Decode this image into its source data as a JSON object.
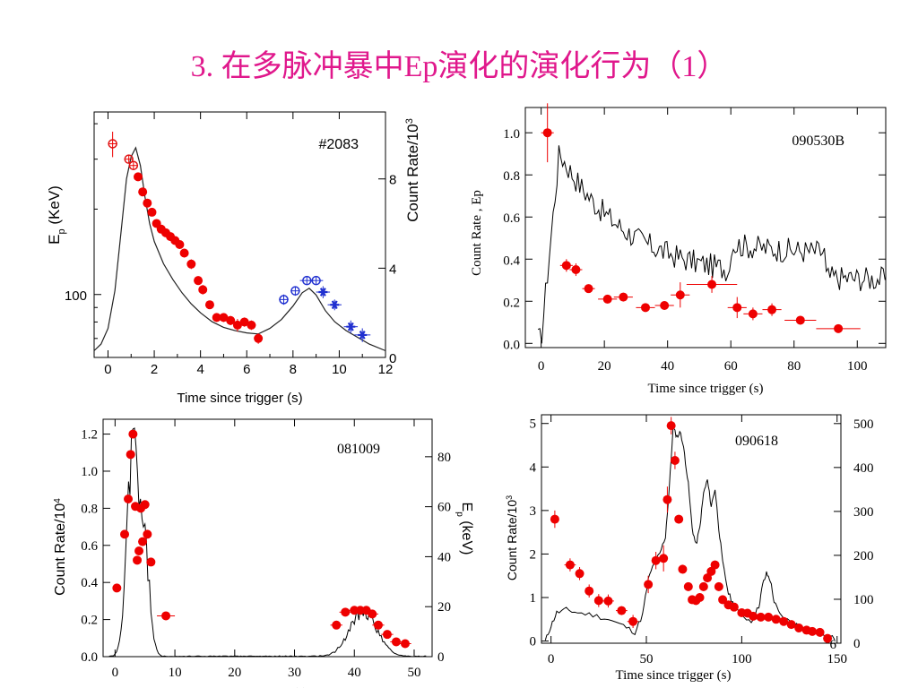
{
  "title": "3. 在多脉冲暴中Ep演化的演化行为（1）",
  "colors": {
    "title": "#e0188c",
    "filled_point": "#ee0000",
    "open_point": "#e01010",
    "blue_point": "#2030d0"
  },
  "chart_data": [
    {
      "id": "p1",
      "type": "scatter",
      "annotation": "#2083",
      "xlabel": "Time since trigger (s)",
      "ylabel": "E_p (KeV)",
      "ylabel_right": "Count Rate/10^3",
      "xlim": [
        -0.6,
        12
      ],
      "x_ticks": [
        0,
        2,
        4,
        6,
        8,
        10,
        12
      ],
      "y_log": true,
      "ylim": [
        60,
        440
      ],
      "y_ticks": [
        100
      ],
      "y2lim": [
        0,
        11
      ],
      "y2_ticks": [
        0,
        4,
        8
      ],
      "series": [
        {
          "marker": "open-red",
          "x": [
            0.2,
            0.9,
            1.1
          ],
          "y": [
            340,
            300,
            285
          ],
          "xerr": [
            0.2,
            0.15,
            0.15
          ],
          "yerr": [
            35,
            10,
            10
          ]
        },
        {
          "marker": "filled-red",
          "x": [
            1.3,
            1.5,
            1.7,
            1.9,
            2.1,
            2.3,
            2.5,
            2.7,
            2.9,
            3.1,
            3.3,
            3.6,
            3.9,
            4.1,
            4.4,
            4.7,
            5.0,
            5.3,
            5.6,
            5.9,
            6.2,
            6.5
          ],
          "y": [
            260,
            230,
            210,
            195,
            178,
            170,
            165,
            160,
            155,
            150,
            140,
            128,
            112,
            104,
            92,
            83,
            83,
            81,
            78,
            80,
            78,
            70
          ],
          "xerr": [
            0.1,
            0.1,
            0.1,
            0.1,
            0.1,
            0.1,
            0.1,
            0.1,
            0.1,
            0.1,
            0.1,
            0.1,
            0.1,
            0.1,
            0.1,
            0.1,
            0.1,
            0.1,
            0.15,
            0.15,
            0.2,
            0.15
          ],
          "yerr": [
            5,
            5,
            5,
            5,
            5,
            5,
            5,
            5,
            5,
            5,
            5,
            5,
            4,
            4,
            3,
            3,
            3,
            3,
            4,
            3,
            3,
            3
          ]
        },
        {
          "marker": "open-blue",
          "x": [
            7.6,
            8.1,
            8.6,
            9.0
          ],
          "y": [
            96,
            103,
            112,
            112
          ],
          "xerr": [
            0.2,
            0.2,
            0.3,
            0.3
          ],
          "yerr": [
            4,
            4,
            4,
            4
          ]
        },
        {
          "marker": "star-blue",
          "x": [
            9.3,
            9.8,
            10.5,
            11.0
          ],
          "y": [
            102,
            92,
            77,
            72
          ],
          "xerr": [
            0.3,
            0.3,
            0.3,
            0.35
          ],
          "yerr": [
            5,
            4,
            4,
            4
          ]
        }
      ],
      "light_curve_y2": {
        "t": [
          -0.6,
          -0.3,
          0.0,
          0.3,
          0.6,
          0.8,
          1.0,
          1.2,
          1.4,
          1.6,
          1.8,
          2.0,
          2.4,
          2.8,
          3.2,
          3.6,
          4.0,
          4.5,
          5.0,
          5.5,
          6.0,
          6.5,
          7.0,
          7.5,
          8.0,
          8.4,
          8.7,
          9.0,
          9.4,
          9.8,
          10.3,
          10.8,
          11.3,
          12.0
        ],
        "rate": [
          0.3,
          0.6,
          1.3,
          3.0,
          6.0,
          8.0,
          9.0,
          9.4,
          8.6,
          7.2,
          6.0,
          5.2,
          4.2,
          3.5,
          2.9,
          2.4,
          2.0,
          1.6,
          1.35,
          1.2,
          1.1,
          1.05,
          1.3,
          1.7,
          2.3,
          2.9,
          3.1,
          2.8,
          2.1,
          1.6,
          1.2,
          0.9,
          0.6,
          0.3
        ]
      }
    },
    {
      "id": "p2",
      "type": "scatter",
      "annotation": "090530B",
      "xlabel": "Time since trigger (s)",
      "ylabel": "Count Rate , Ep",
      "xlim": [
        -5,
        109
      ],
      "x_ticks": [
        0,
        20,
        40,
        60,
        80,
        100
      ],
      "ylim": [
        -0.02,
        1.12
      ],
      "y_ticks": [
        0.0,
        0.2,
        0.4,
        0.6,
        0.8,
        1.0
      ],
      "y_tick_labels": [
        "0.0",
        "0.2",
        "0.4",
        "0.6",
        "0.8",
        "1.0"
      ],
      "series": [
        {
          "marker": "filled-red",
          "x": [
            2,
            8,
            11,
            15,
            21,
            26,
            33,
            39,
            44,
            54,
            62,
            67,
            73,
            82,
            94
          ],
          "y": [
            1.0,
            0.37,
            0.35,
            0.26,
            0.21,
            0.22,
            0.17,
            0.18,
            0.23,
            0.28,
            0.17,
            0.14,
            0.16,
            0.11,
            0.07
          ],
          "xerr": [
            2,
            2,
            2,
            2,
            3,
            3,
            3,
            3,
            3,
            8,
            3,
            3,
            3,
            5,
            7
          ],
          "yerr": [
            0.14,
            0.03,
            0.03,
            0.02,
            0.02,
            0.02,
            0.02,
            0.02,
            0.06,
            0.04,
            0.05,
            0.03,
            0.03,
            0.02,
            0.02
          ]
        }
      ],
      "light_curve": {
        "t_start": -1,
        "t_end": 109,
        "rise_to": 6,
        "peak": 0.95,
        "base": 0.02
      }
    },
    {
      "id": "p3",
      "type": "scatter",
      "annotation": "081009",
      "xlabel": "Time since trigger (s)",
      "ylabel": "Count Rate/10^4",
      "ylabel_right": "E_p (keV)",
      "xlim": [
        -2,
        53
      ],
      "x_ticks": [
        0,
        10,
        20,
        30,
        40,
        50
      ],
      "ylim": [
        0,
        1.28
      ],
      "y_ticks": [
        0.0,
        0.2,
        0.4,
        0.6,
        0.8,
        1.0,
        1.2
      ],
      "y_tick_labels": [
        "0.0",
        "0.2",
        "0.4",
        "0.6",
        "0.8",
        "1.0",
        "1.2"
      ],
      "y2lim": [
        0,
        95
      ],
      "y2_ticks": [
        0,
        20,
        40,
        60,
        80
      ],
      "series": [
        {
          "marker": "filled-red",
          "x": [
            0.3,
            1.6,
            2.2,
            2.6,
            3.0,
            3.4,
            3.7,
            4.0,
            4.3,
            4.6,
            5.0,
            5.4,
            6.0,
            8.5
          ],
          "y": [
            0.37,
            0.66,
            0.85,
            1.09,
            1.2,
            0.81,
            0.52,
            0.57,
            0.8,
            0.62,
            0.82,
            0.66,
            0.51,
            0.22
          ],
          "xerr": [
            0.5,
            0.2,
            0.2,
            0.2,
            0.2,
            0.2,
            0.2,
            0.2,
            0.2,
            0.2,
            0.2,
            0.2,
            0.2,
            1.5
          ],
          "yerr": [
            0.01,
            0.01,
            0.01,
            0.01,
            0.01,
            0.01,
            0.01,
            0.01,
            0.01,
            0.01,
            0.01,
            0.01,
            0.01,
            0.01
          ]
        },
        {
          "marker": "filled-red",
          "x": [
            37,
            38.5,
            40,
            41,
            42,
            43,
            44,
            45.5,
            47,
            48.5
          ],
          "y": [
            0.17,
            0.24,
            0.25,
            0.25,
            0.25,
            0.23,
            0.17,
            0.12,
            0.08,
            0.07
          ],
          "xerr": [
            1,
            1,
            1,
            1,
            1,
            1,
            1,
            1,
            1,
            1
          ],
          "yerr": [
            0.01,
            0.01,
            0.01,
            0.01,
            0.01,
            0.01,
            0.01,
            0.01,
            0.01,
            0.01
          ]
        }
      ]
    },
    {
      "id": "p4",
      "type": "scatter",
      "annotation": "090618",
      "xlabel": "Time since trigger (s)",
      "ylabel": "Count Rate/10^3",
      "corner_label": "6",
      "xlim": [
        -5,
        152
      ],
      "x_ticks": [
        0,
        50,
        100,
        150
      ],
      "ylim": [
        -0.05,
        5.2
      ],
      "y_ticks": [
        0,
        1,
        2,
        3,
        4,
        5
      ],
      "y2lim": [
        0,
        520
      ],
      "y2_ticks": [
        0,
        100,
        200,
        300,
        400,
        500
      ],
      "series": [
        {
          "marker": "filled-red",
          "x": [
            2,
            10,
            15,
            20,
            25,
            30,
            37,
            43,
            51,
            55,
            59,
            61,
            63,
            65,
            67,
            69,
            72,
            74,
            76,
            78,
            80,
            82,
            84,
            86,
            88,
            90,
            93,
            96,
            100,
            103,
            106,
            110,
            114,
            118,
            122,
            126,
            130,
            134,
            137,
            141,
            145
          ],
          "y": [
            2.8,
            1.75,
            1.55,
            1.15,
            0.93,
            0.92,
            0.7,
            0.45,
            1.3,
            1.85,
            1.9,
            3.25,
            4.95,
            4.15,
            2.8,
            1.65,
            1.25,
            0.95,
            0.93,
            1.0,
            1.25,
            1.45,
            1.6,
            1.75,
            1.25,
            0.95,
            0.83,
            0.78,
            0.65,
            0.64,
            0.57,
            0.55,
            0.55,
            0.5,
            0.45,
            0.38,
            0.3,
            0.25,
            0.22,
            0.2,
            0.06
          ],
          "xerr": [
            2,
            3,
            2,
            2,
            2,
            3,
            3,
            3,
            2,
            2,
            2,
            1,
            1,
            1,
            1,
            1,
            1,
            1,
            1,
            1,
            1,
            1,
            1,
            1,
            1,
            1,
            2,
            2,
            2,
            2,
            2,
            2,
            2,
            2,
            2,
            2,
            2,
            2,
            2,
            2,
            2
          ],
          "yerr": [
            0.2,
            0.15,
            0.15,
            0.15,
            0.15,
            0.15,
            0.1,
            0.15,
            0.2,
            0.2,
            0.3,
            0.3,
            0.2,
            0.2,
            0.1,
            0.1,
            0.1,
            0.1,
            0.1,
            0.1,
            0.1,
            0.1,
            0.1,
            0.1,
            0.1,
            0.1,
            0.08,
            0.08,
            0.08,
            0.08,
            0.08,
            0.08,
            0.08,
            0.08,
            0.08,
            0.08,
            0.08,
            0.08,
            0.08,
            0.08,
            0.08
          ]
        }
      ],
      "light_curve": {
        "t": [
          -3,
          0,
          3,
          8,
          14,
          22,
          30,
          38,
          44,
          48,
          51,
          54,
          57,
          60,
          62,
          64,
          66,
          68,
          70,
          72,
          74,
          76,
          78,
          80,
          82,
          84,
          86,
          88,
          90,
          93,
          96,
          100,
          105,
          109,
          111,
          113,
          115,
          117,
          120,
          125,
          130,
          135,
          140,
          145,
          150
        ],
        "rate": [
          0,
          0.35,
          0.65,
          0.72,
          0.65,
          0.6,
          0.5,
          0.35,
          0.2,
          0.6,
          1.4,
          1.8,
          2.0,
          2.4,
          3.5,
          4.9,
          4.7,
          4.8,
          4.3,
          3.6,
          2.6,
          2.2,
          2.6,
          3.4,
          3.7,
          3.1,
          3.5,
          2.6,
          1.8,
          1.1,
          0.8,
          0.6,
          0.45,
          0.8,
          1.3,
          1.55,
          1.4,
          0.9,
          0.6,
          0.45,
          0.35,
          0.25,
          0.15,
          0.1,
          0.05
        ]
      }
    }
  ]
}
